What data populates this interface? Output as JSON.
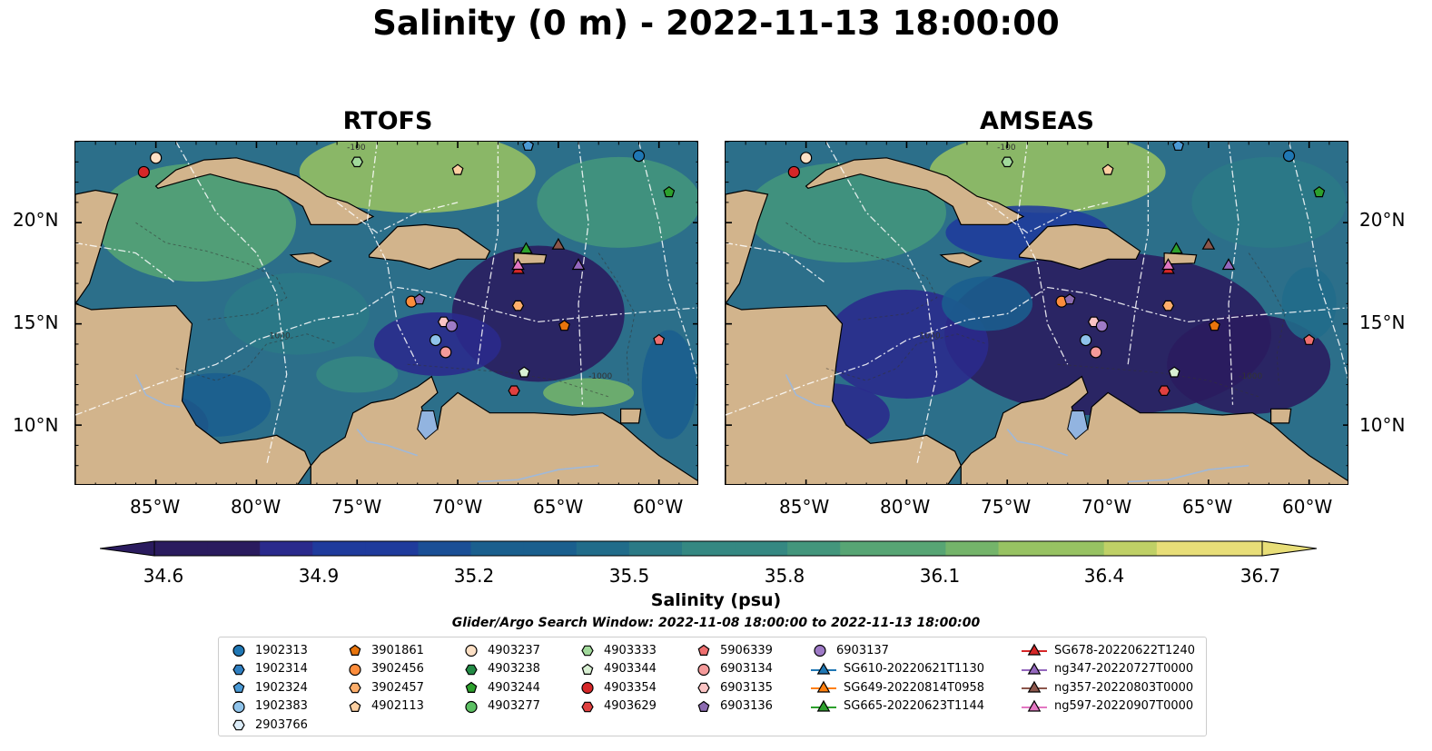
{
  "title": "Salinity (0 m) - 2022-11-13 18:00:00",
  "panels": [
    {
      "title": "RTOFS"
    },
    {
      "title": "AMSEAS"
    }
  ],
  "lon_labels": [
    "85°W",
    "80°W",
    "75°W",
    "70°W",
    "65°W",
    "60°W"
  ],
  "lat_labels": [
    "20°N",
    "15°N",
    "10°N"
  ],
  "contour_labels": [
    "-100",
    "-1000"
  ],
  "colorbar": {
    "label": "Salinity (psu)",
    "ticks": [
      "34.6",
      "34.9",
      "35.2",
      "35.5",
      "35.8",
      "36.1",
      "36.4",
      "36.7"
    ],
    "colormap": "haline",
    "min": 34.6,
    "max": 36.7,
    "extend": "both"
  },
  "search_window": "Glider/Argo Search Window: 2022-11-08 18:00:00 to 2022-11-13 18:00:00",
  "legend": {
    "columns": [
      [
        {
          "label": "1902313",
          "marker": "circle",
          "color": "#1f77b4"
        },
        {
          "label": "1902314",
          "marker": "hexagon",
          "color": "#2f7fc1"
        },
        {
          "label": "1902324",
          "marker": "pentagon",
          "color": "#4a9ad6"
        },
        {
          "label": "1902383",
          "marker": "circle",
          "color": "#8fc3ea"
        },
        {
          "label": "2903766",
          "marker": "hexagon",
          "color": "#dcecf8"
        }
      ],
      [
        {
          "label": "3901861",
          "marker": "pentagon",
          "color": "#e8740c"
        },
        {
          "label": "3902456",
          "marker": "circle",
          "color": "#fd8d3c"
        },
        {
          "label": "3902457",
          "marker": "hexagon",
          "color": "#fdae6b"
        },
        {
          "label": "4902113",
          "marker": "pentagon",
          "color": "#fdd0a2"
        }
      ],
      [
        {
          "label": "4903237",
          "marker": "circle",
          "color": "#fde0c5"
        },
        {
          "label": "4903238",
          "marker": "hexagon",
          "color": "#238b45"
        },
        {
          "label": "4903244",
          "marker": "pentagon",
          "color": "#2ca02c"
        },
        {
          "label": "4903277",
          "marker": "circle",
          "color": "#5cc063"
        }
      ],
      [
        {
          "label": "4903333",
          "marker": "hexagon",
          "color": "#a1d99b"
        },
        {
          "label": "4903344",
          "marker": "pentagon",
          "color": "#d9f0d3"
        },
        {
          "label": "4903354",
          "marker": "circle",
          "color": "#d62728"
        },
        {
          "label": "4903629",
          "marker": "hexagon",
          "color": "#e0403f"
        }
      ],
      [
        {
          "label": "5906339",
          "marker": "pentagon",
          "color": "#ef6f6f"
        },
        {
          "label": "6903134",
          "marker": "circle",
          "color": "#f49a9a"
        },
        {
          "label": "6903135",
          "marker": "hexagon",
          "color": "#fbc4c4"
        },
        {
          "label": "6903136",
          "marker": "pentagon",
          "color": "#8c6bb1"
        }
      ],
      [
        {
          "label": "6903137",
          "marker": "circle",
          "color": "#9e7ac6"
        },
        {
          "label": "SG610-20220621T1130",
          "marker": "triangle",
          "color": "#1f77b4"
        },
        {
          "label": "SG649-20220814T0958",
          "marker": "triangle",
          "color": "#ff7f0e"
        },
        {
          "label": "SG665-20220623T1144",
          "marker": "triangle",
          "color": "#2ca02c"
        }
      ],
      [
        {
          "label": "SG678-20220622T1240",
          "marker": "triangle",
          "color": "#d62728"
        },
        {
          "label": "ng347-20220727T0000",
          "marker": "triangle",
          "color": "#9467bd"
        },
        {
          "label": "ng357-20220803T0000",
          "marker": "triangle",
          "color": "#8c564b"
        },
        {
          "label": "ng597-20220907T0000",
          "marker": "triangle",
          "color": "#e377c2"
        }
      ]
    ]
  },
  "map_extent": {
    "lon": [
      -89,
      -58
    ],
    "lat": [
      7,
      24
    ]
  },
  "colors": {
    "land": "#d2b48c",
    "lake": "#92b4e0",
    "river": "#a0b8d8"
  },
  "observations": [
    {
      "id": "4903237",
      "lon": -85,
      "lat": 23.2
    },
    {
      "id": "4903354",
      "lon": -85.6,
      "lat": 22.5
    },
    {
      "id": "1902324",
      "lon": -66.5,
      "lat": 23.8
    },
    {
      "id": "1902313",
      "lon": -61,
      "lat": 23.3
    },
    {
      "id": "4903333",
      "lon": -75,
      "lat": 23.0
    },
    {
      "id": "4902113",
      "lon": -70,
      "lat": 22.6
    },
    {
      "id": "4903244",
      "lon": -59.5,
      "lat": 21.5
    },
    {
      "id": "3902456",
      "lon": -72.3,
      "lat": 16.1
    },
    {
      "id": "6903136",
      "lon": -71.9,
      "lat": 16.2
    },
    {
      "id": "6903135",
      "lon": -70.7,
      "lat": 15.1
    },
    {
      "id": "6903137",
      "lon": -70.3,
      "lat": 14.9
    },
    {
      "id": "1902383",
      "lon": -71.1,
      "lat": 14.2
    },
    {
      "id": "6903134",
      "lon": -70.6,
      "lat": 13.6
    },
    {
      "id": "3902457",
      "lon": -67,
      "lat": 15.9
    },
    {
      "id": "3901861",
      "lon": -64.7,
      "lat": 14.9
    },
    {
      "id": "5906339",
      "lon": -60,
      "lat": 14.2
    },
    {
      "id": "4903344",
      "lon": -66.7,
      "lat": 12.6
    },
    {
      "id": "4903629",
      "lon": -67.2,
      "lat": 11.7
    },
    {
      "id": "SG665-20220623T1144",
      "lon": -66.6,
      "lat": 18.7
    },
    {
      "id": "ng357-20220803T0000",
      "lon": -65,
      "lat": 18.9
    },
    {
      "id": "SG678-20220622T1240",
      "lon": -67,
      "lat": 17.7
    },
    {
      "id": "ng597-20220907T0000",
      "lon": -67,
      "lat": 17.9
    },
    {
      "id": "ng347-20220727T0000",
      "lon": -64,
      "lat": 17.9
    }
  ]
}
